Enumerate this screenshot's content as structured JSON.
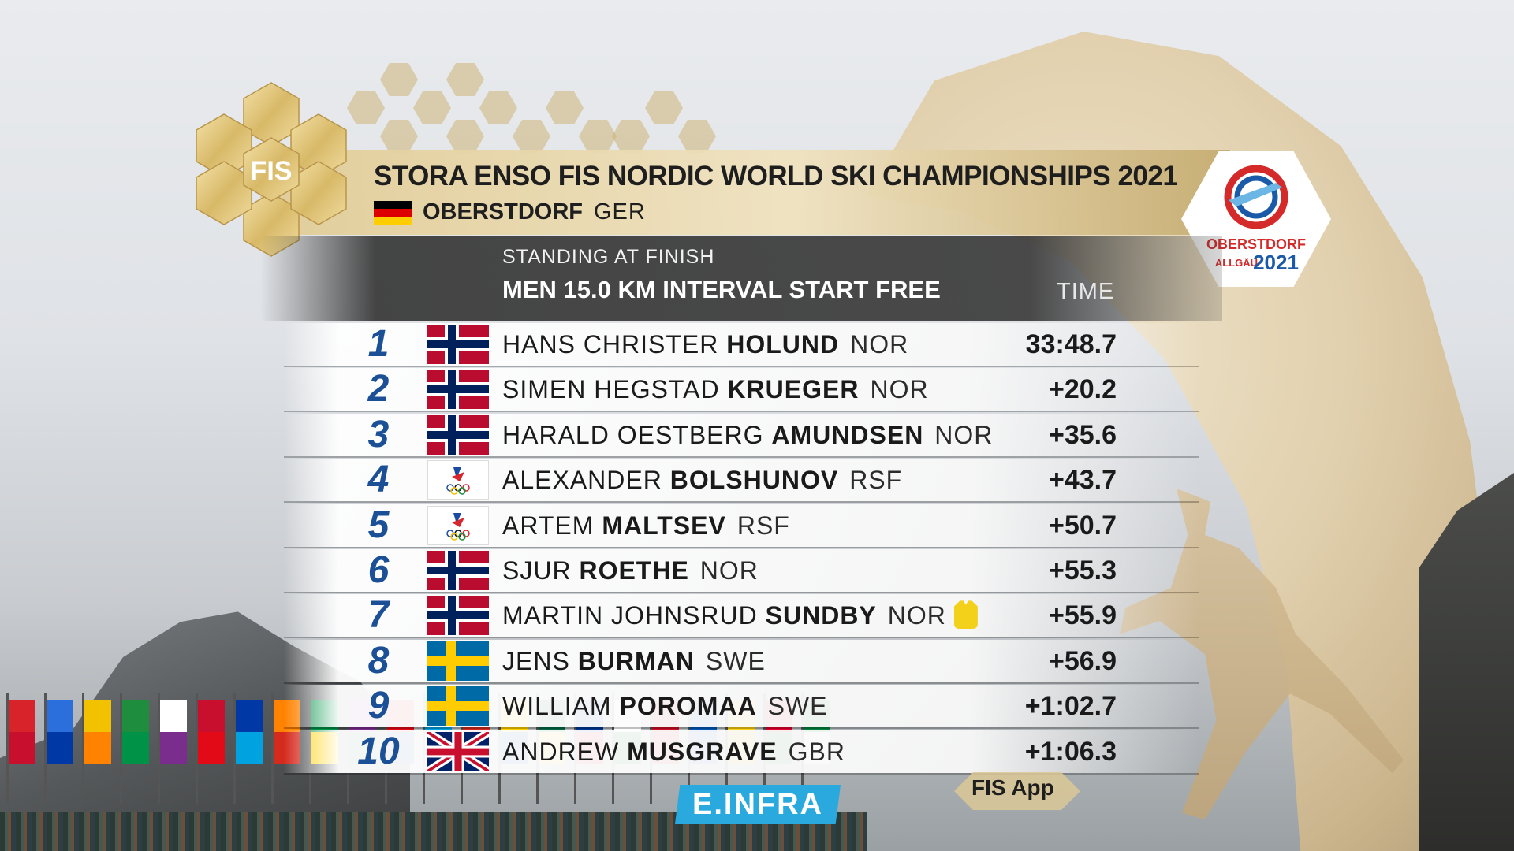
{
  "header": {
    "title": "STORA ENSO FIS NORDIC WORLD SKI CHAMPIONSHIPS 2021",
    "city": "OBERSTDORF",
    "country": "GER",
    "logo_text": "FIS",
    "event_logo": {
      "line1": "OBERSTDORF",
      "line2": "ALLGÄU",
      "year": "2021"
    }
  },
  "subheader": {
    "standing": "STANDING AT FINISH",
    "event": "MEN 15.0 KM INTERVAL START FREE",
    "time_label": "TIME"
  },
  "results": [
    {
      "rank": "1",
      "first": "HANS CHRISTER",
      "last": "HOLUND",
      "nation": "NOR",
      "time": "33:48.7",
      "flag": "NOR"
    },
    {
      "rank": "2",
      "first": "SIMEN HEGSTAD",
      "last": "KRUEGER",
      "nation": "NOR",
      "time": "+20.2",
      "flag": "NOR"
    },
    {
      "rank": "3",
      "first": "HARALD OESTBERG",
      "last": "AMUNDSEN",
      "nation": "NOR",
      "time": "+35.6",
      "flag": "NOR"
    },
    {
      "rank": "4",
      "first": "ALEXANDER",
      "last": "BOLSHUNOV",
      "nation": "RSF",
      "time": "+43.7",
      "flag": "RSF"
    },
    {
      "rank": "5",
      "first": "ARTEM",
      "last": "MALTSEV",
      "nation": "RSF",
      "time": "+50.7",
      "flag": "RSF"
    },
    {
      "rank": "6",
      "first": "SJUR",
      "last": "ROETHE",
      "nation": "NOR",
      "time": "+55.3",
      "flag": "NOR"
    },
    {
      "rank": "7",
      "first": "MARTIN JOHNSRUD",
      "last": "SUNDBY",
      "nation": "NOR",
      "time": "+55.9",
      "flag": "NOR",
      "yellow_bib": true
    },
    {
      "rank": "8",
      "first": "JENS",
      "last": "BURMAN",
      "nation": "SWE",
      "time": "+56.9",
      "flag": "SWE"
    },
    {
      "rank": "9",
      "first": "WILLIAM",
      "last": "POROMAA",
      "nation": "SWE",
      "time": "+1:02.7",
      "flag": "SWE"
    },
    {
      "rank": "10",
      "first": "ANDREW",
      "last": "MUSGRAVE",
      "nation": "GBR",
      "time": "+1:06.3",
      "flag": "GBR"
    }
  ],
  "footer": {
    "sponsor": "E.INFRA",
    "app_label": "FIS App"
  },
  "colors": {
    "rank_blue": "#1b4f96",
    "gold": "#e1cc96",
    "sponsor_blue": "#2aa9df"
  }
}
